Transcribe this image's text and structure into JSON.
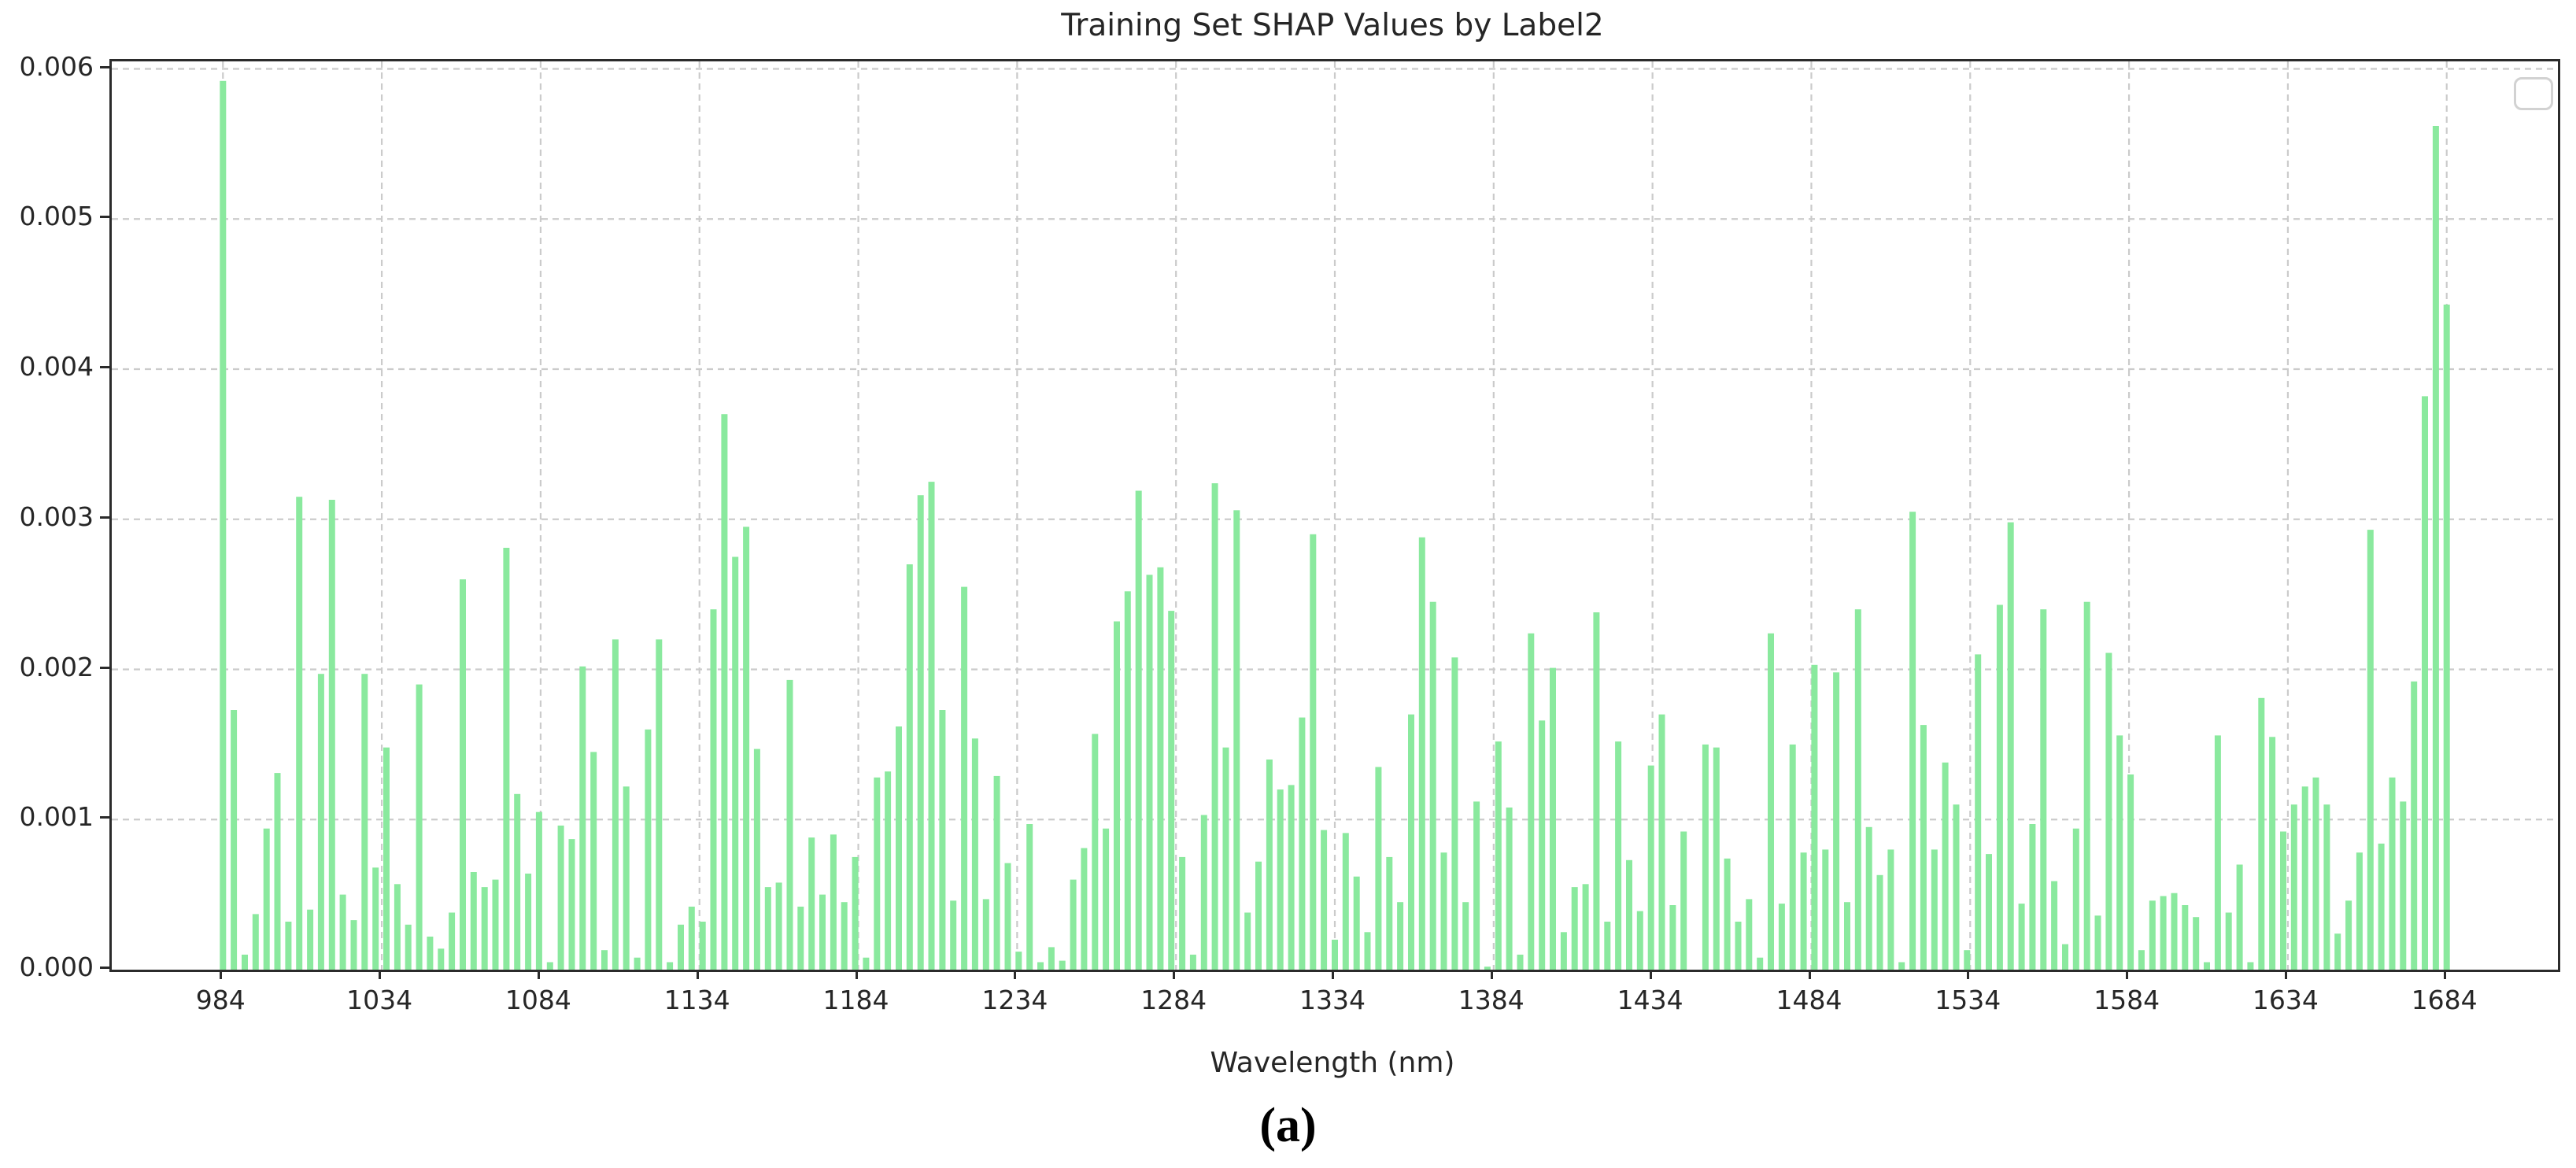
{
  "figure_caption": "(a)",
  "chart_data": {
    "type": "bar",
    "title": "Training Set SHAP Values by Label2",
    "xlabel": "Wavelength (nm)",
    "ylabel": "",
    "legend": {
      "present": true,
      "empty": true,
      "position": "upper right"
    },
    "grid": {
      "on": true,
      "style": "dashed",
      "color": "#cbcbcb"
    },
    "bar_color": "#8ae99e",
    "spine_color": "#2b2b2b",
    "xlim": [
      949,
      1719
    ],
    "ylim": [
      0,
      0.00605
    ],
    "x_ticks": [
      984,
      1034,
      1084,
      1134,
      1184,
      1234,
      1284,
      1334,
      1384,
      1434,
      1484,
      1534,
      1584,
      1634,
      1684
    ],
    "y_tick_values": [
      0,
      0.001,
      0.002,
      0.003,
      0.004,
      0.005,
      0.006
    ],
    "y_tick_labels": [
      "0.000",
      "0.001",
      "0.002",
      "0.003",
      "0.004",
      "0.005",
      "0.006"
    ],
    "x_start": 984,
    "x_step": 3.43137,
    "values": [
      0.00592,
      0.00173,
      0.0001,
      0.00037,
      0.00094,
      0.00131,
      0.00032,
      0.00315,
      0.0004,
      0.00197,
      0.00313,
      0.0005,
      0.00033,
      0.00197,
      0.00068,
      0.00148,
      0.00057,
      0.0003,
      0.0019,
      0.00022,
      0.00014,
      0.00038,
      0.0026,
      0.00065,
      0.00055,
      0.0006,
      0.00281,
      0.00117,
      0.00064,
      0.00105,
      5e-05,
      0.00096,
      0.00087,
      0.00202,
      0.00145,
      0.00013,
      0.0022,
      0.00122,
      8e-05,
      0.0016,
      0.0022,
      5e-05,
      0.0003,
      0.00042,
      0.00032,
      0.0024,
      0.0037,
      0.00275,
      0.00295,
      0.00147,
      0.00055,
      0.00058,
      0.00193,
      0.00042,
      0.00088,
      0.0005,
      0.0009,
      0.00045,
      0.00075,
      8e-05,
      0.00128,
      0.00132,
      0.00162,
      0.0027,
      0.00316,
      0.00325,
      0.00173,
      0.00046,
      0.00255,
      0.00154,
      0.00047,
      0.00129,
      0.00071,
      0.00012,
      0.00097,
      5e-05,
      0.00015,
      6e-05,
      0.0006,
      0.00081,
      0.00157,
      0.00094,
      0.00232,
      0.00252,
      0.00319,
      0.00263,
      0.00268,
      0.00239,
      0.00075,
      0.0001,
      0.00103,
      0.00324,
      0.00148,
      0.00306,
      0.00038,
      0.00072,
      0.0014,
      0.0012,
      0.00123,
      0.00168,
      0.0029,
      0.00093,
      0.0002,
      0.00091,
      0.00062,
      0.00025,
      0.00135,
      0.00075,
      0.00045,
      0.0017,
      0.00288,
      0.00245,
      0.00078,
      0.00208,
      0.00045,
      0.00112,
      2e-05,
      0.00152,
      0.00108,
      0.0001,
      0.00224,
      0.00166,
      0.00201,
      0.00025,
      0.00055,
      0.00057,
      0.00238,
      0.00032,
      0.00152,
      0.00073,
      0.00039,
      0.00136,
      0.0017,
      0.00043,
      0.00092,
      0,
      0.0015,
      0.00148,
      0.00074,
      0.00032,
      0.00047,
      8e-05,
      0.00224,
      0.00044,
      0.0015,
      0.00078,
      0.00203,
      0.0008,
      0.00198,
      0.00045,
      0.0024,
      0.00095,
      0.00063,
      0.0008,
      5e-05,
      0.00305,
      0.00163,
      0.0008,
      0.00138,
      0.0011,
      0.00013,
      0.0021,
      0.00077,
      0.00243,
      0.00298,
      0.00044,
      0.00097,
      0.0024,
      0.00059,
      0.00017,
      0.00094,
      0.00245,
      0.00036,
      0.00211,
      0.00156,
      0.0013,
      0.00013,
      0.00046,
      0.00049,
      0.00051,
      0.00043,
      0.00035,
      5e-05,
      0.00156,
      0.00038,
      0.0007,
      5e-05,
      0.00181,
      0.00155,
      0.00092,
      0.0011,
      0.00122,
      0.00128,
      0.0011,
      0.00024,
      0.00046,
      0.00078,
      0.00293,
      0.00084,
      0.00128,
      0.00112,
      0.00192,
      0.00382,
      0.00562,
      0.00443
    ]
  }
}
